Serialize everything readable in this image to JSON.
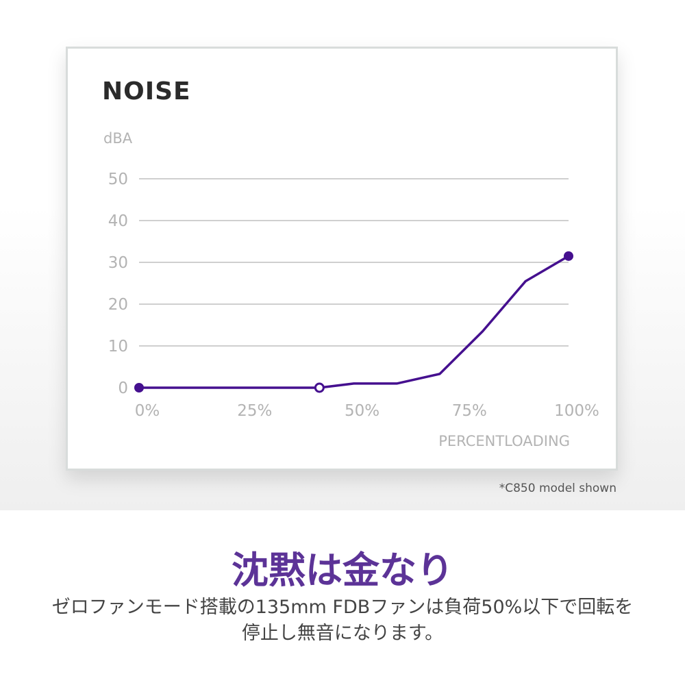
{
  "chart_data": {
    "type": "line",
    "title": "NOISE",
    "ylabel": "dBA",
    "xlabel": "PERCENTLOADING",
    "x": [
      0,
      42,
      50,
      60,
      70,
      80,
      90,
      100
    ],
    "series": [
      {
        "values": [
          0,
          0,
          1,
          1,
          3.3,
          13.5,
          25.5,
          31.5
        ]
      }
    ],
    "markers": [
      {
        "x": 0,
        "y": 0,
        "style": "filled"
      },
      {
        "x": 42,
        "y": 0,
        "style": "hollow"
      },
      {
        "x": 100,
        "y": 31.5,
        "style": "filled"
      }
    ],
    "xticks": [
      0,
      25,
      50,
      75,
      100
    ],
    "xtick_labels": [
      "0%",
      "25%",
      "50%",
      "75%",
      "100%"
    ],
    "yticks": [
      0,
      10,
      20,
      30,
      40,
      50
    ],
    "ytick_labels": [
      "0",
      "10",
      "20",
      "30",
      "40",
      "50"
    ],
    "xlim": [
      0,
      100
    ],
    "ylim": [
      0,
      50
    ],
    "grid": true,
    "line_color": "#45108f"
  },
  "footnote": "*C850 model shown",
  "headline": "沈黙は金なり",
  "description": {
    "line1": "ゼロファンモード搭載の135mm FDBファンは負荷50%以下で回転を",
    "line2": "停止し無音になります。"
  }
}
